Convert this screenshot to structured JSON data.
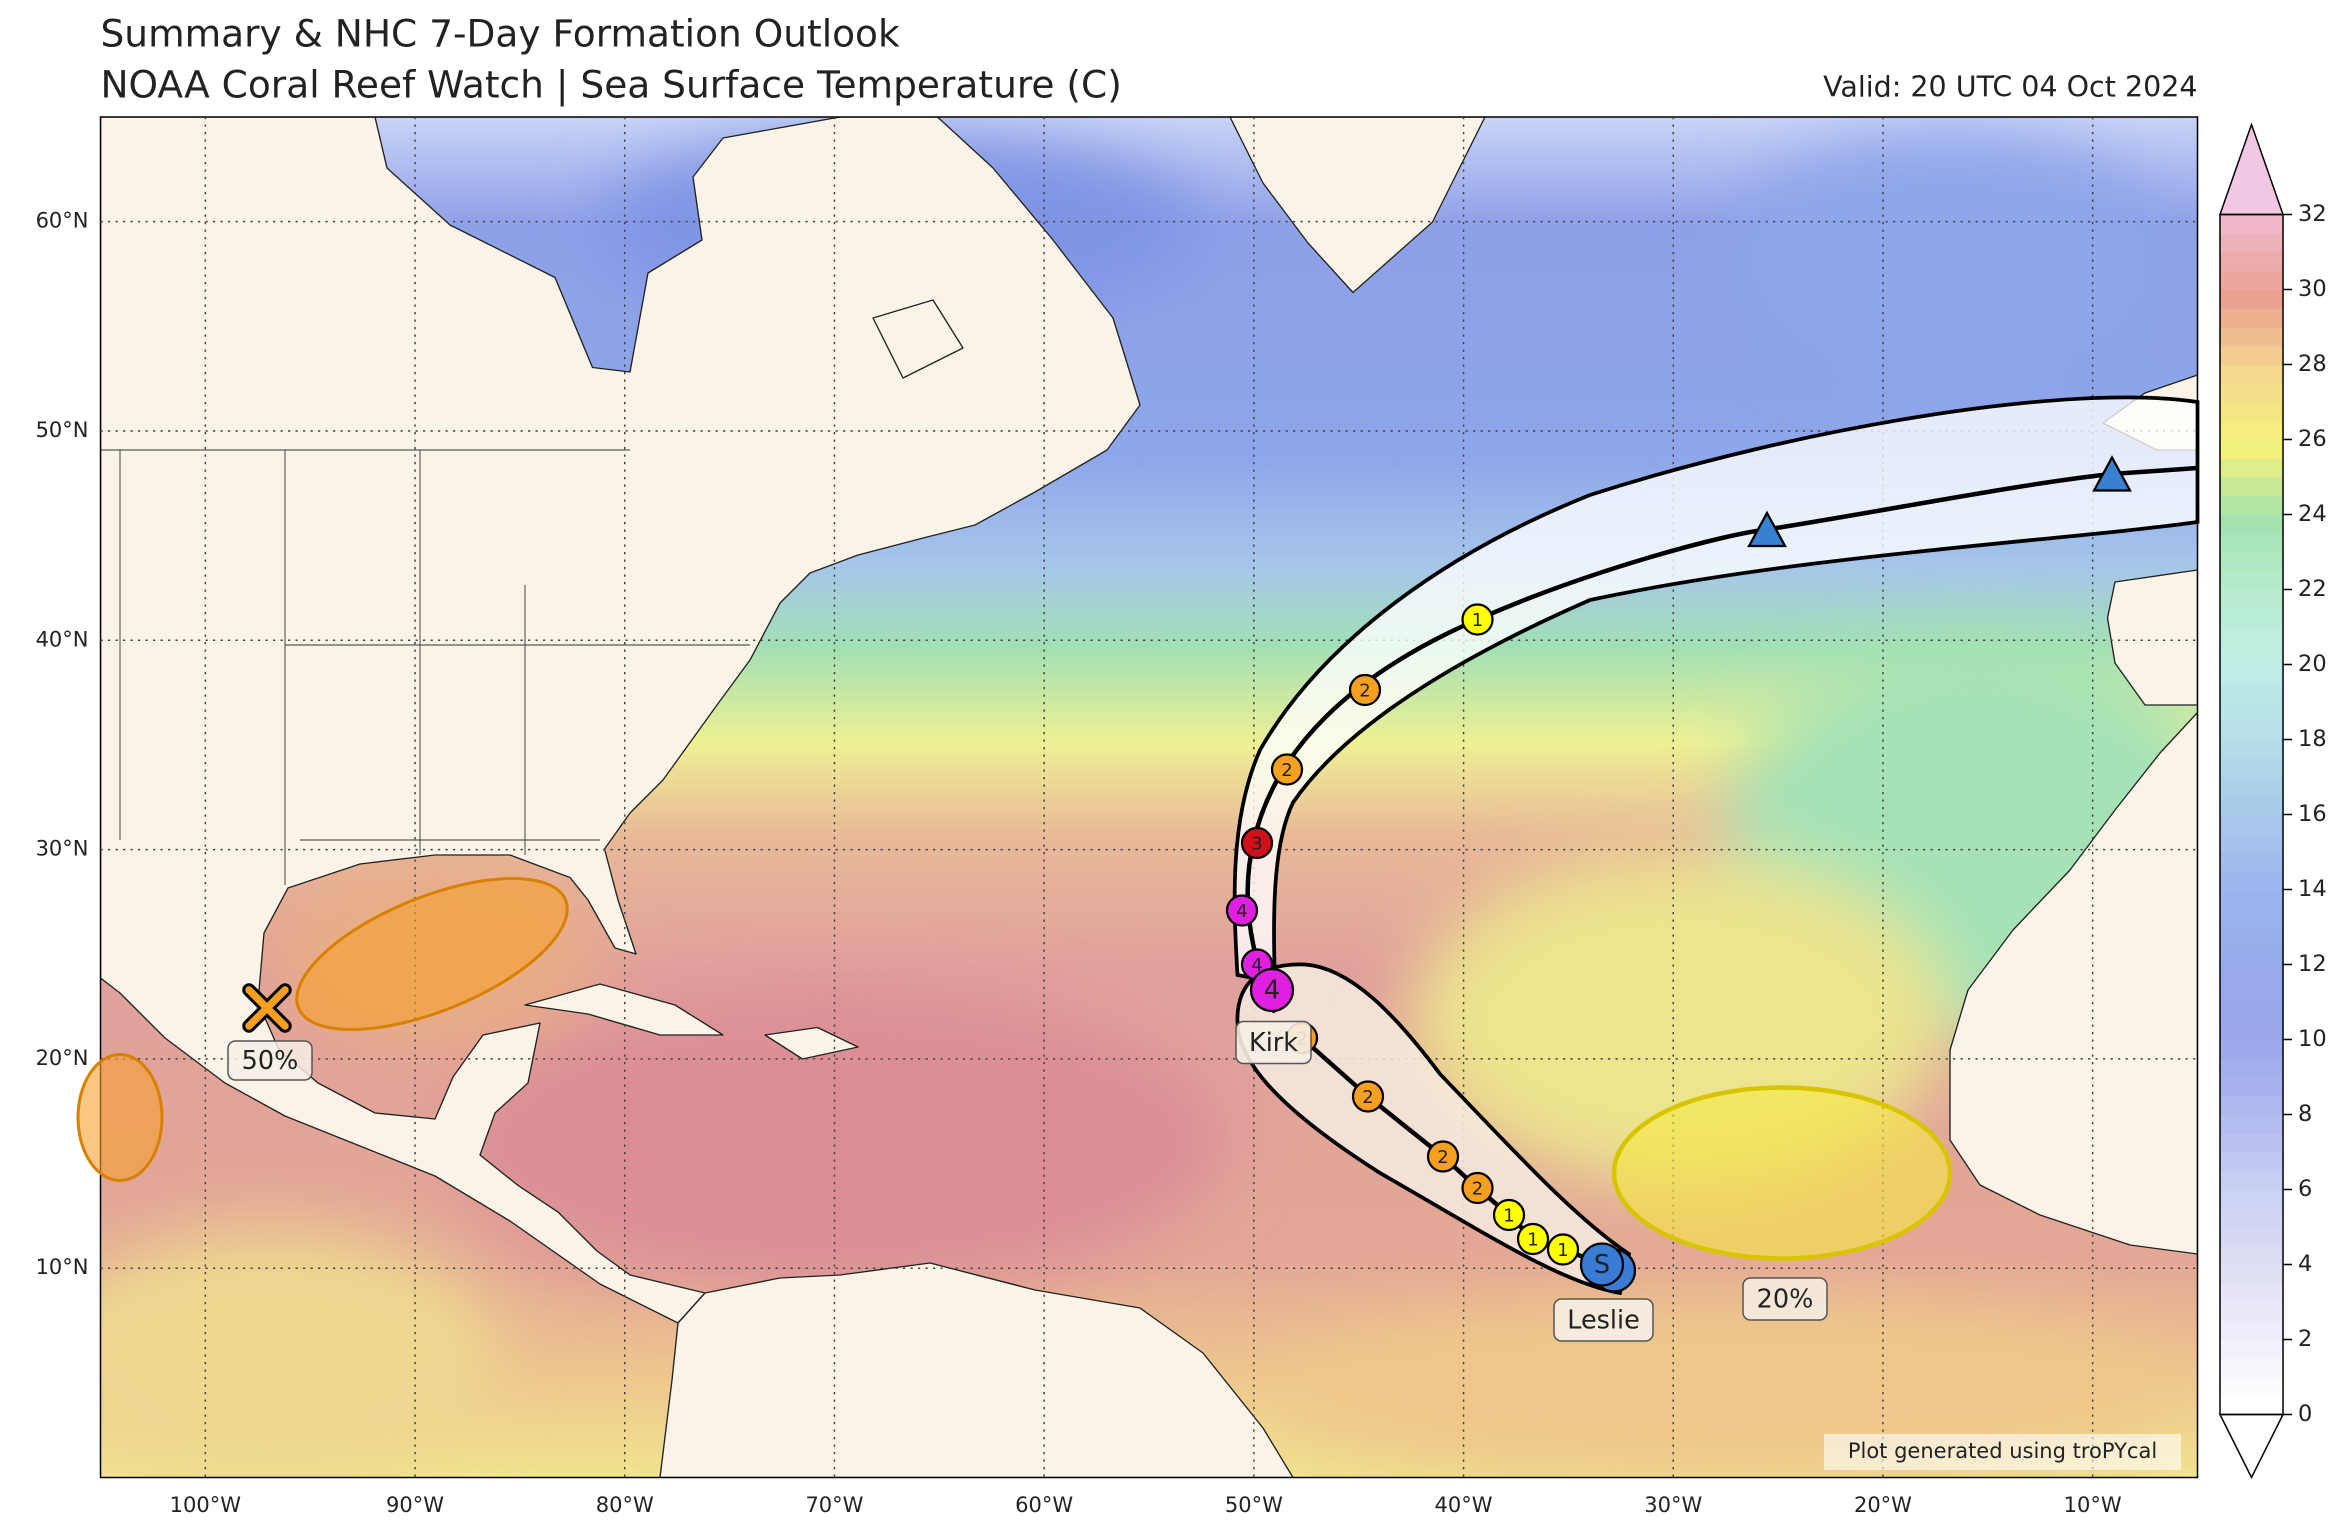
{
  "header": {
    "title": "Summary & NHC 7-Day Formation Outlook",
    "subtitle": "NOAA Coral Reef Watch | Sea Surface Temperature (C)",
    "valid": "Valid: 20 UTC 04 Oct 2024"
  },
  "map": {
    "lon_range": [
      -105,
      -5
    ],
    "lat_range": [
      0,
      65
    ],
    "grid": true,
    "lat_ticks": [
      {
        "value": 10,
        "label": "10°N"
      },
      {
        "value": 20,
        "label": "20°N"
      },
      {
        "value": 30,
        "label": "30°N"
      },
      {
        "value": 40,
        "label": "40°N"
      },
      {
        "value": 50,
        "label": "50°N"
      },
      {
        "value": 60,
        "label": "60°N"
      }
    ],
    "lon_ticks": [
      {
        "value": -100,
        "label": "100°W"
      },
      {
        "value": -90,
        "label": "90°W"
      },
      {
        "value": -80,
        "label": "80°W"
      },
      {
        "value": -70,
        "label": "70°W"
      },
      {
        "value": -60,
        "label": "60°W"
      },
      {
        "value": -50,
        "label": "50°W"
      },
      {
        "value": -40,
        "label": "40°W"
      },
      {
        "value": -30,
        "label": "30°W"
      },
      {
        "value": -20,
        "label": "20°W"
      },
      {
        "value": -10,
        "label": "10°W"
      }
    ]
  },
  "colorbar": {
    "range": [
      0,
      32
    ],
    "ticks": [
      0,
      2,
      4,
      6,
      8,
      10,
      12,
      14,
      16,
      18,
      20,
      22,
      24,
      26,
      28,
      30,
      32
    ]
  },
  "outlooks": [
    {
      "label": "50%",
      "color": "#f5a030"
    },
    {
      "label": "20%",
      "color": "#f6ea45"
    }
  ],
  "storms": [
    {
      "name": "Kirk",
      "points": [
        "4",
        "4",
        "4",
        "3",
        "2",
        "2",
        "1"
      ]
    },
    {
      "name": "Leslie",
      "points": [
        "S",
        "1",
        "1",
        "1",
        "2",
        "2",
        "2",
        "2"
      ]
    }
  ],
  "credit": "Plot generated using troPYcal"
}
